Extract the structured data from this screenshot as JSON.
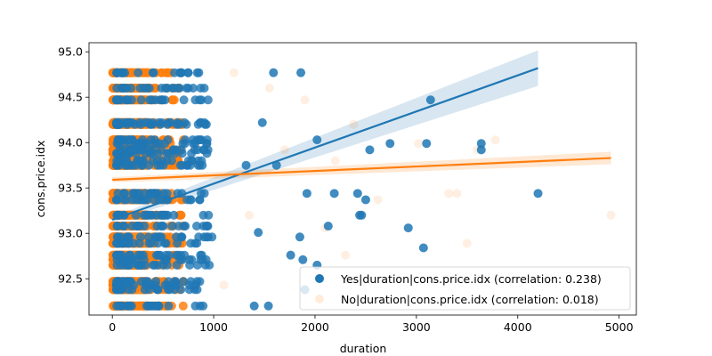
{
  "chart_data": {
    "type": "scatter",
    "xlabel": "duration",
    "ylabel": "cons.price.idx",
    "xlim": [
      -230,
      5170
    ],
    "ylim": [
      92.1,
      95.1
    ],
    "xticks": [
      0,
      1000,
      2000,
      3000,
      4000,
      5000
    ],
    "yticks": [
      92.5,
      93.0,
      93.5,
      94.0,
      94.5,
      95.0
    ],
    "ytick_labels": [
      "92.5",
      "93.0",
      "93.5",
      "94.0",
      "94.5",
      "95.0"
    ],
    "levels": [
      92.2,
      92.38,
      92.43,
      92.47,
      92.65,
      92.71,
      92.76,
      92.89,
      92.96,
      93.08,
      93.2,
      93.37,
      93.44,
      93.75,
      93.8,
      93.88,
      93.92,
      93.99,
      94.03,
      94.2,
      94.22,
      94.47,
      94.6,
      94.77
    ],
    "legend_position": "lower right",
    "series": [
      {
        "name": "Yes|duration|cons.price.idx (correlation: 0.238)",
        "color": "#1f77b4",
        "regression": {
          "x": [
            0,
            4200
          ],
          "y": [
            93.15,
            94.82
          ]
        },
        "extra_points": [
          [
            4200,
            93.44
          ],
          [
            3640,
            93.99
          ],
          [
            3640,
            93.92
          ],
          [
            3140,
            94.47
          ],
          [
            3100,
            93.99
          ],
          [
            3070,
            92.84
          ],
          [
            2920,
            93.06
          ],
          [
            2740,
            93.99
          ],
          [
            2540,
            93.92
          ],
          [
            2500,
            93.37
          ],
          [
            2460,
            93.2
          ],
          [
            2440,
            93.2
          ],
          [
            2420,
            93.44
          ],
          [
            2190,
            93.44
          ],
          [
            2130,
            93.08
          ],
          [
            2020,
            94.03
          ],
          [
            2020,
            92.65
          ],
          [
            1920,
            93.44
          ],
          [
            1900,
            92.38
          ],
          [
            1880,
            92.71
          ],
          [
            1860,
            94.77
          ],
          [
            1850,
            92.96
          ],
          [
            1760,
            92.76
          ],
          [
            1620,
            93.75
          ],
          [
            1590,
            94.77
          ],
          [
            1540,
            92.2
          ],
          [
            1480,
            94.22
          ],
          [
            1440,
            93.01
          ],
          [
            1400,
            92.2
          ],
          [
            1320,
            93.75
          ]
        ]
      },
      {
        "name": "No|duration|cons.price.idx (correlation: 0.018)",
        "color": "#ff7f0e",
        "regression": {
          "x": [
            0,
            4920
          ],
          "y": [
            93.59,
            93.83
          ]
        },
        "extra_points": [
          [
            4920,
            93.2
          ],
          [
            3780,
            94.03
          ],
          [
            3600,
            93.92
          ],
          [
            3500,
            92.89
          ],
          [
            3400,
            93.44
          ],
          [
            3320,
            93.44
          ],
          [
            3020,
            93.99
          ],
          [
            2620,
            93.37
          ],
          [
            2380,
            94.2
          ],
          [
            2300,
            92.76
          ],
          [
            2200,
            93.8
          ],
          [
            2100,
            93.06
          ],
          [
            1900,
            94.47
          ],
          [
            1700,
            93.92
          ],
          [
            1550,
            94.6
          ],
          [
            1350,
            93.2
          ],
          [
            1200,
            94.77
          ],
          [
            1100,
            92.43
          ]
        ]
      }
    ]
  }
}
